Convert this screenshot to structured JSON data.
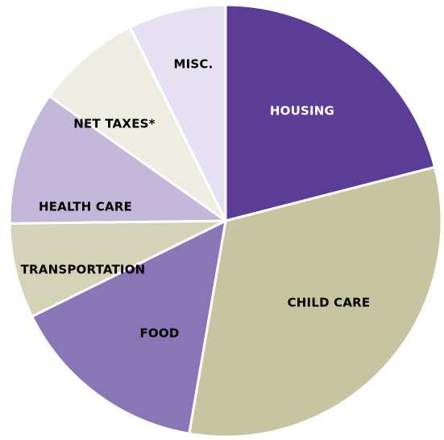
{
  "chart_data": {
    "type": "pie",
    "title": "",
    "start_angle_deg": 0,
    "direction": "clockwise",
    "legend": "none",
    "slices": [
      {
        "label": "HOUSING",
        "value": 21.0,
        "color": "#5b3c97",
        "label_color": "#ffffff"
      },
      {
        "label": "CHILD CARE",
        "value": 31.7,
        "color": "#c7c4a2",
        "label_color": "#000000"
      },
      {
        "label": "FOOD",
        "value": 15.0,
        "color": "#8876b6",
        "label_color": "#000000"
      },
      {
        "label": "TRANSPORTATION",
        "value": 7.1,
        "color": "#d4d3b7",
        "label_color": "#000000"
      },
      {
        "label": "HEALTH CARE",
        "value": 10.0,
        "color": "#c3b8da",
        "label_color": "#000000"
      },
      {
        "label": "NET TAXES*",
        "value": 7.9,
        "color": "#eeede3",
        "label_color": "#000000"
      },
      {
        "label": "MISC.",
        "value": 7.3,
        "color": "#e6e1f0",
        "label_color": "#000000"
      }
    ]
  }
}
